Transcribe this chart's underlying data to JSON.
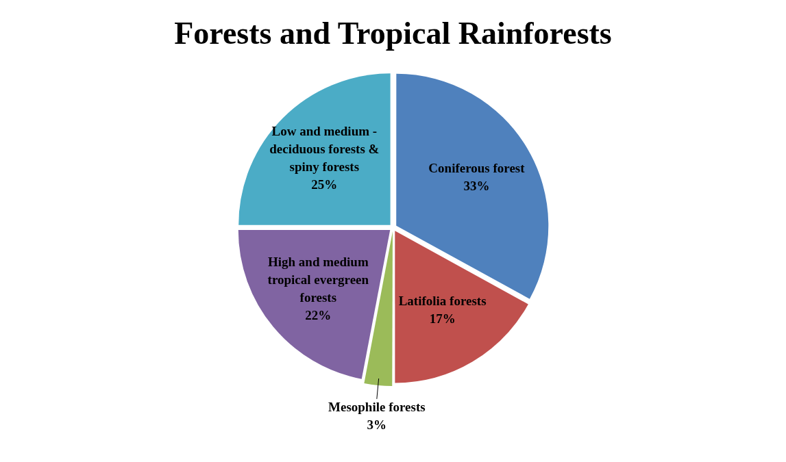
{
  "chart_data": {
    "type": "pie",
    "title": "Forests and Tropical Rainforests",
    "categories": [
      "Coniferous forest",
      "Latifolia forests",
      "Mesophile forests",
      "High and medium tropical evergreen forests",
      "Low and medium - deciduous forests & spiny forests"
    ],
    "values": [
      33,
      17,
      3,
      22,
      25
    ],
    "value_labels": [
      "33%",
      "17%",
      "3%",
      "22%",
      "25%"
    ],
    "colors": [
      "#4f81bd",
      "#c0504d",
      "#9bbb59",
      "#8064a2",
      "#4bacc6"
    ],
    "legend": false
  }
}
